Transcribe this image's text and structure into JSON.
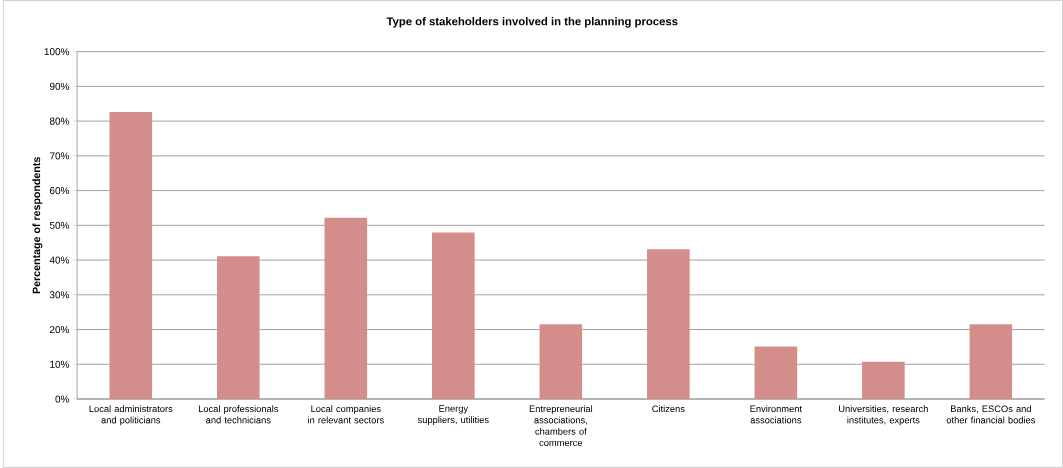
{
  "chart_data": {
    "type": "bar",
    "title": "Type of stakeholders involved in the planning process",
    "ylabel": "Percentage of respondents",
    "categories": [
      "Local administrators and politicians",
      "Local professionals and technicians",
      "Local companies in relevant sectors",
      "Energy suppliers, utilities",
      "Entrepreneurial associations, chambers of commerce",
      "Citizens",
      "Environment associations",
      "Universities, research institutes, experts",
      "Banks, ESCOs and other financial bodies"
    ],
    "values": [
      82.6,
      41.1,
      52.2,
      47.9,
      21.5,
      43.1,
      15.1,
      10.7,
      21.5
    ],
    "color": "#d38d8b",
    "ylim": [
      0,
      100
    ],
    "yticks": [
      {
        "value": 0,
        "label": "0%"
      },
      {
        "value": 10,
        "label": "10%"
      },
      {
        "value": 20,
        "label": "20%"
      },
      {
        "value": 30,
        "label": "30%"
      },
      {
        "value": 40,
        "label": "40%"
      },
      {
        "value": 50,
        "label": "50%"
      },
      {
        "value": 60,
        "label": "60%"
      },
      {
        "value": 70,
        "label": "70%"
      },
      {
        "value": 80,
        "label": "80%"
      },
      {
        "value": 90,
        "label": "90%"
      },
      {
        "value": 100,
        "label": "100%"
      }
    ],
    "grid": "y"
  }
}
